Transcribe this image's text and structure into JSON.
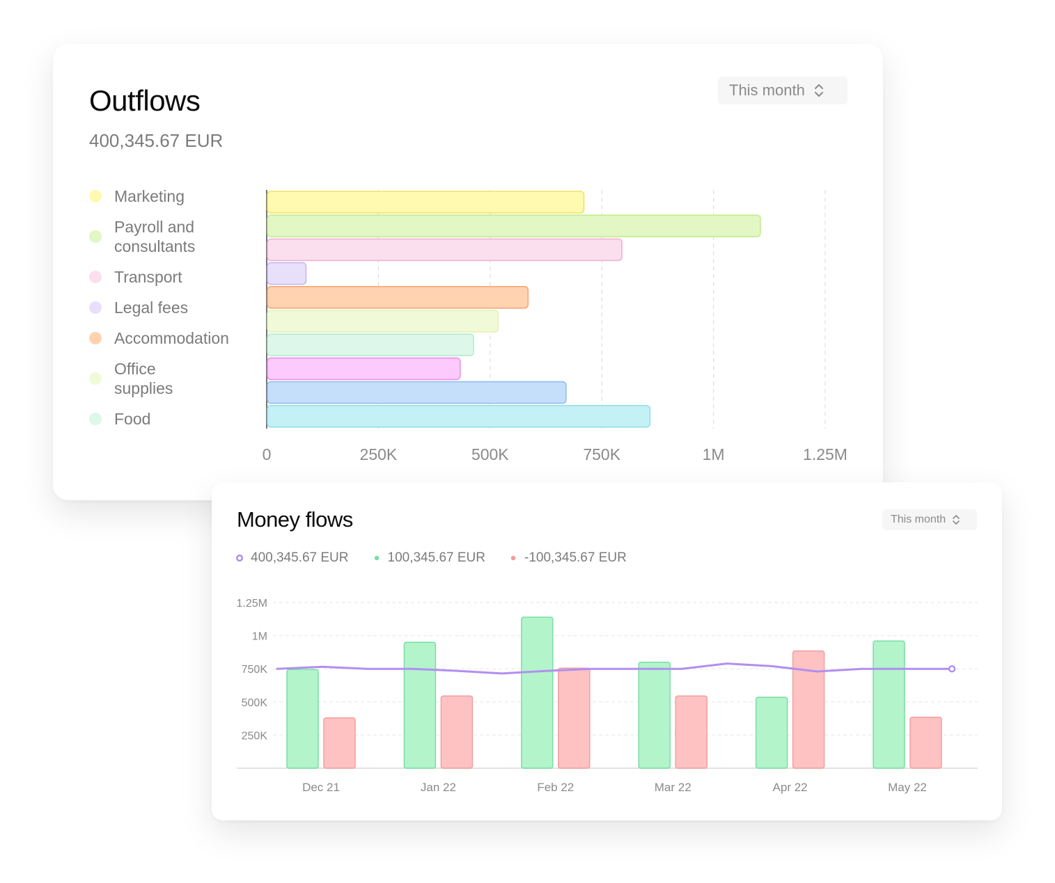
{
  "outflows": {
    "title": "Outflows",
    "total": "400,345.67 EUR",
    "period_selector": "This month",
    "legend": [
      {
        "label": "Marketing",
        "color": "#fffab0"
      },
      {
        "label": "Payroll and consultants",
        "color": "#e2f7c4"
      },
      {
        "label": "Transport",
        "color": "#fbdfee"
      },
      {
        "label": "Legal fees",
        "color": "#e8e0fa"
      },
      {
        "label": "Accommodation",
        "color": "#ffd3b0"
      },
      {
        "label": "Office supplies",
        "color": "#f1fad8"
      },
      {
        "label": "Food",
        "color": "#ddf7ea"
      }
    ]
  },
  "money_flows": {
    "title": "Money flows",
    "period_selector": "This month",
    "legend": [
      {
        "label": "400,345.67 EUR",
        "color": "#a68bea",
        "marker": "ring"
      },
      {
        "label": "100,345.67 EUR",
        "color": "#6fe3a0",
        "marker": "dot"
      },
      {
        "label": "-100,345.67 EUR",
        "color": "#f59a9a",
        "marker": "dot"
      }
    ]
  },
  "chart_data": [
    {
      "type": "bar",
      "orientation": "horizontal",
      "xlim": [
        0,
        1250000
      ],
      "xticks": [
        0,
        250000,
        500000,
        750000,
        1000000,
        1250000
      ],
      "xtick_labels": [
        "0",
        "250K",
        "500K",
        "750K",
        "1M",
        "1.25M"
      ],
      "grid": true,
      "values": [
        710000,
        1105000,
        795000,
        88000,
        585000,
        518000,
        463000,
        433000,
        670000,
        858000
      ],
      "colors": [
        "#fffab0",
        "#e2f7c4",
        "#fbdfee",
        "#e8e0fa",
        "#ffd3b0",
        "#f1fad8",
        "#ddf7ea",
        "#fccafc",
        "#c5dffb",
        "#c4f1f5"
      ],
      "borders": [
        "#f1e35e",
        "#c4ec8e",
        "#efb1d0",
        "#c9b6f3",
        "#f5a773",
        "#e3f0b2",
        "#b5ebcd",
        "#eb8fe6",
        "#94bdf0",
        "#96e0ea"
      ]
    },
    {
      "type": "bar",
      "overlay": "line",
      "categories": [
        "Dec 21",
        "Jan 22",
        "Feb 22",
        "Mar 22",
        "Apr 22",
        "May 22"
      ],
      "yticks": [
        250000,
        500000,
        750000,
        1000000,
        1250000
      ],
      "ytick_labels": [
        "250K",
        "500K",
        "750K",
        "1M",
        "1.25M"
      ],
      "ylim": [
        0,
        1250000
      ],
      "grid": true,
      "series": [
        {
          "values": [
            745000,
            950000,
            1140000,
            800000,
            535000,
            960000
          ],
          "color": "#b3f4cb",
          "border": "#74dca0"
        },
        {
          "values": [
            380000,
            545000,
            755000,
            545000,
            885000,
            385000
          ],
          "color": "#ffc2c2",
          "border": "#f19b9b"
        }
      ],
      "line": {
        "color": "#b18ff0",
        "values": [
          750000,
          765000,
          750000,
          750000,
          735000,
          715000,
          735000,
          750000,
          750000,
          750000,
          790000,
          770000,
          730000,
          750000,
          750000,
          750000
        ]
      }
    }
  ]
}
